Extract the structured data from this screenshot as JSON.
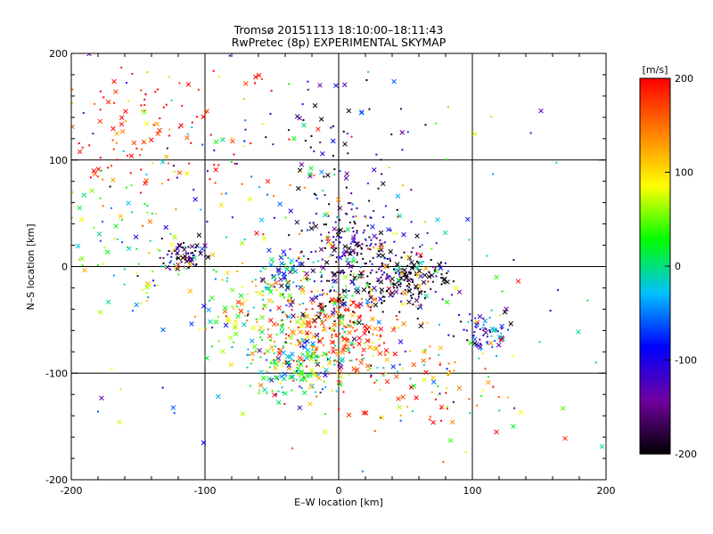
{
  "chart_data": {
    "type": "scatter",
    "title": "Tromsø 20151113 18:10:00–18:11:43",
    "subtitle": "RwPretec (8p) EXPERIMENTAL SKYMAP",
    "xlabel": "E–W location [km]",
    "ylabel": "N–S location [km]",
    "xlim": [
      -200,
      200
    ],
    "ylim": [
      -200,
      200
    ],
    "xticks": [
      "-200",
      "-100",
      "0",
      "100",
      "200"
    ],
    "yticks": [
      "-200",
      "-100",
      "0",
      "100",
      "200"
    ],
    "grid": true,
    "marker_types": [
      "dot",
      "x"
    ],
    "colorbar": {
      "label": "[m/s]",
      "min": -200,
      "max": 200,
      "ticks": [
        "-200",
        "-100",
        "0",
        "100",
        "200"
      ],
      "colormap": [
        "#000000",
        "#7000a0",
        "#0000ff",
        "#00c0ff",
        "#00ff00",
        "#ffff00",
        "#ff8000",
        "#ff0000"
      ]
    },
    "clusters": [
      {
        "x": -5,
        "y": -65,
        "spread": 28,
        "count": 320,
        "velocity": 170
      },
      {
        "x": 20,
        "y": -10,
        "spread": 25,
        "count": 220,
        "velocity": -190
      },
      {
        "x": 55,
        "y": -10,
        "spread": 12,
        "count": 110,
        "velocity": -200
      },
      {
        "x": -30,
        "y": -95,
        "spread": 18,
        "count": 130,
        "velocity": 10
      },
      {
        "x": 10,
        "y": 30,
        "spread": 22,
        "count": 130,
        "velocity": -140
      },
      {
        "x": -115,
        "y": 10,
        "spread": 9,
        "count": 70,
        "velocity": -190
      },
      {
        "x": -60,
        "y": -40,
        "spread": 25,
        "count": 140,
        "velocity": 60
      },
      {
        "x": -140,
        "y": 120,
        "spread": 45,
        "count": 170,
        "velocity": 190
      },
      {
        "x": 110,
        "y": -60,
        "spread": 12,
        "count": 70,
        "velocity": -110
      },
      {
        "x": -40,
        "y": -5,
        "spread": 10,
        "count": 60,
        "velocity": -50
      },
      {
        "x": -160,
        "y": 20,
        "spread": 40,
        "count": 90,
        "velocity": 20
      },
      {
        "x": 70,
        "y": -110,
        "spread": 35,
        "count": 90,
        "velocity": 150
      },
      {
        "x": -10,
        "y": 110,
        "spread": 35,
        "count": 70,
        "velocity": -180
      },
      {
        "x": 0,
        "y": 0,
        "spread": 110,
        "count": 180,
        "velocity": 0
      }
    ]
  }
}
